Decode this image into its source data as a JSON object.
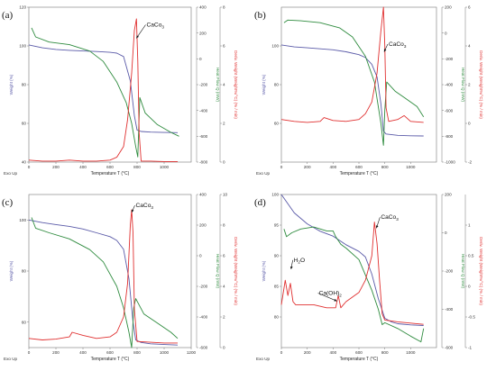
{
  "colors": {
    "weight": "#5a5aa8",
    "heatflow": "#2e8b3e",
    "deriv": "#e03030",
    "frame": "#777777"
  },
  "chart_data": [
    {
      "type": "line",
      "panel_label": "(a)",
      "xlabel": "Temperature T (°C)",
      "xlim": [
        0,
        1200
      ],
      "xticks": [
        0,
        200,
        400,
        600,
        800,
        1000
      ],
      "left_axis": {
        "label": "Weight (%)",
        "lim": [
          40,
          120
        ],
        "ticks": [
          40,
          60,
          80,
          100,
          120
        ]
      },
      "right1_axis": {
        "label": "Heat Flow Q (mW)",
        "lim": [
          -800,
          400
        ],
        "ticks": [
          -800,
          -600,
          -400,
          -200,
          0,
          200,
          400
        ]
      },
      "right2_axis": {
        "label": "Deriv. Weight (Weight%/°C) (% / min)",
        "lim": [
          0,
          8
        ],
        "ticks": [
          0,
          2,
          4,
          6,
          8
        ]
      },
      "exo_label": "Exo Up",
      "annotations": [
        {
          "text": "CaCo",
          "sub": "3",
          "x": 870,
          "y_left": 110,
          "arrow_to": [
            795,
            104
          ]
        }
      ],
      "series": [
        {
          "name": "Weight",
          "axis": "left",
          "x": [
            0,
            100,
            200,
            300,
            400,
            500,
            600,
            650,
            700,
            750,
            780,
            800,
            830,
            900,
            1000,
            1100
          ],
          "y": [
            100.5,
            99,
            98.2,
            97.7,
            97.4,
            97.1,
            96.7,
            96.3,
            94.5,
            82,
            64,
            56.5,
            55.8,
            55.5,
            55.3,
            55.2
          ]
        },
        {
          "name": "Heat Flow",
          "axis": "right1",
          "x": [
            20,
            50,
            150,
            300,
            450,
            550,
            650,
            720,
            760,
            790,
            805,
            820,
            860,
            950,
            1050,
            1110
          ],
          "y": [
            240,
            170,
            130,
            110,
            60,
            -20,
            -180,
            -340,
            -500,
            -680,
            -760,
            -300,
            -420,
            -510,
            -570,
            -600
          ]
        },
        {
          "name": "Deriv. Weight",
          "axis": "right2",
          "x": [
            0,
            100,
            200,
            300,
            400,
            500,
            600,
            650,
            700,
            730,
            760,
            780,
            795,
            805,
            815,
            830,
            900,
            1000,
            1100
          ],
          "y": [
            0.1,
            0.05,
            0.05,
            0.1,
            0.05,
            0.05,
            0.1,
            0.25,
            0.8,
            2.2,
            4.6,
            6.8,
            7.4,
            5.2,
            1.5,
            0.05,
            0.05,
            0.03,
            0.03
          ]
        }
      ]
    },
    {
      "type": "line",
      "panel_label": "(b)",
      "xlabel": "Temperature T (°C)",
      "xlim": [
        0,
        1200
      ],
      "xticks": [
        0,
        200,
        400,
        600,
        800,
        1000
      ],
      "left_axis": {
        "label": "Weight (%)",
        "lim": [
          40,
          120
        ],
        "ticks": [
          60,
          80,
          100
        ]
      },
      "right1_axis": {
        "label": "Heat Flow Q (mW)",
        "lim": [
          -1000,
          200
        ],
        "ticks": [
          -1000,
          -800,
          -600,
          -400,
          -200,
          0,
          200
        ]
      },
      "right2_axis": {
        "label": "Deriv. Weight (Weight%/°C) (% / min)",
        "lim": [
          -2,
          6
        ],
        "ticks": [
          -2,
          0,
          2,
          4,
          6
        ]
      },
      "exo_label": "Exo Up",
      "annotations": [
        {
          "text": "CaCo",
          "sub": "3",
          "x": 830,
          "y_left": 100,
          "arrow_to": [
            795,
            97
          ]
        }
      ],
      "series": [
        {
          "name": "Weight",
          "axis": "left",
          "x": [
            0,
            100,
            200,
            300,
            400,
            500,
            600,
            650,
            700,
            740,
            770,
            790,
            810,
            900,
            1000,
            1100
          ],
          "y": [
            100.5,
            99.5,
            99,
            98.5,
            98,
            97,
            95.5,
            94,
            90.5,
            84,
            70,
            56,
            54.5,
            53.8,
            53.6,
            53.5
          ]
        },
        {
          "name": "Heat Flow",
          "axis": "right1",
          "x": [
            20,
            50,
            150,
            300,
            450,
            550,
            650,
            720,
            770,
            790,
            800,
            815,
            880,
            950,
            1050,
            1100
          ],
          "y": [
            80,
            100,
            95,
            80,
            40,
            -30,
            -180,
            -380,
            -700,
            -870,
            -600,
            -380,
            -450,
            -500,
            -570,
            -650
          ]
        },
        {
          "name": "Deriv. Weight",
          "axis": "right2",
          "x": [
            0,
            100,
            200,
            300,
            330,
            400,
            500,
            600,
            650,
            700,
            740,
            770,
            790,
            800,
            810,
            830,
            900,
            950,
            1000,
            1100
          ],
          "y": [
            0.2,
            0.1,
            0.05,
            0.1,
            0.3,
            0.15,
            0.1,
            0.2,
            0.5,
            1.1,
            2.6,
            4.8,
            6,
            4,
            0.8,
            0.1,
            0.2,
            0.4,
            0.1,
            0.05
          ]
        }
      ]
    },
    {
      "type": "line",
      "panel_label": "(c)",
      "xlabel": "Temperature T (°C)",
      "xlim": [
        0,
        1200
      ],
      "xticks": [
        0,
        200,
        400,
        600,
        800,
        1000,
        1200
      ],
      "left_axis": {
        "label": "Weight (%)",
        "lim": [
          50,
          110
        ],
        "ticks": [
          60,
          80,
          100
        ]
      },
      "right1_axis": {
        "label": "Heat Flow Q (mW)",
        "lim": [
          -600,
          400
        ],
        "ticks": [
          -600,
          -400,
          -200,
          0,
          200,
          400
        ]
      },
      "right2_axis": {
        "label": "Deriv. Weight (Weight%/°C) (% / min)",
        "lim": [
          0,
          10
        ],
        "ticks": [
          0,
          2,
          4,
          6,
          8,
          10
        ]
      },
      "exo_label": "Exo Up",
      "annotations": [
        {
          "text": "CaCo",
          "sub": "3",
          "x": 790,
          "y_left": 105,
          "arrow_to": [
            760,
            103
          ]
        }
      ],
      "series": [
        {
          "name": "Weight",
          "axis": "left",
          "x": [
            0,
            100,
            200,
            300,
            400,
            500,
            600,
            650,
            700,
            740,
            770,
            790,
            830,
            900,
            1000,
            1100
          ],
          "y": [
            100,
            99,
            98.2,
            97.5,
            96.5,
            95,
            93.5,
            92,
            88.5,
            77,
            60,
            53,
            52,
            51.5,
            51.2,
            51
          ]
        },
        {
          "name": "Heat Flow",
          "axis": "right1",
          "x": [
            20,
            50,
            150,
            300,
            450,
            550,
            650,
            700,
            740,
            760,
            775,
            790,
            850,
            950,
            1050,
            1100
          ],
          "y": [
            250,
            180,
            150,
            110,
            40,
            -40,
            -200,
            -340,
            -500,
            -600,
            -340,
            -280,
            -380,
            -440,
            -500,
            -540
          ]
        },
        {
          "name": "Deriv. Weight",
          "axis": "right2",
          "x": [
            0,
            100,
            200,
            300,
            320,
            400,
            500,
            600,
            650,
            700,
            730,
            750,
            760,
            770,
            780,
            800,
            900,
            1000,
            1100
          ],
          "y": [
            0.6,
            0.5,
            0.55,
            0.7,
            1,
            0.8,
            0.6,
            0.7,
            1,
            2,
            4.2,
            8,
            9,
            7.5,
            2.5,
            0.4,
            0.35,
            0.3,
            0.3
          ]
        }
      ]
    },
    {
      "type": "line",
      "panel_label": "(d)",
      "xlabel": "Temperature T (°C)",
      "xlim": [
        0,
        1200
      ],
      "xticks": [
        0,
        200,
        400,
        600,
        800,
        1000
      ],
      "left_axis": {
        "label": "Weight (%)",
        "lim": [
          75,
          100
        ],
        "ticks": [
          80,
          85,
          90,
          95,
          100
        ]
      },
      "right1_axis": {
        "label": "Heat Flow Q (mW)",
        "lim": [
          -600,
          200
        ],
        "ticks": [
          -600,
          -400,
          -200,
          0,
          200
        ]
      },
      "right2_axis": {
        "label": "Deriv. Weight (Weight%/°C) (% / min)",
        "lim": [
          -1,
          1.5
        ],
        "ticks": [
          -1,
          -0.5,
          0,
          0.5,
          1
        ]
      },
      "exo_label": "Exo Up",
      "annotations": [
        {
          "text": "CaCo",
          "sub": "3",
          "x": 770,
          "y_left": 96,
          "arrow_to": [
            735,
            94.5
          ]
        },
        {
          "text": "H",
          "sub": "2",
          "tail": "O",
          "x": 95,
          "y_left": 89,
          "arrow_to": [
            75,
            87.8
          ]
        },
        {
          "text": "Ca(OH)",
          "sub": "2",
          "x": 290,
          "y_left": 83.6,
          "arrow_to": [
            430,
            82.6
          ]
        }
      ],
      "series": [
        {
          "name": "Weight",
          "axis": "left",
          "x": [
            0,
            50,
            100,
            200,
            300,
            400,
            450,
            500,
            600,
            650,
            700,
            750,
            800,
            850,
            900,
            1000,
            1100
          ],
          "y": [
            100,
            98.5,
            97,
            95.2,
            94,
            93.2,
            92.5,
            91.8,
            90.7,
            89.8,
            87,
            83,
            79.8,
            79.2,
            78.9,
            78.7,
            78.6
          ]
        },
        {
          "name": "Heat Flow",
          "axis": "right1",
          "x": [
            20,
            40,
            80,
            150,
            250,
            350,
            400,
            420,
            460,
            500,
            600,
            700,
            750,
            780,
            800,
            900,
            1000,
            1080,
            1100
          ],
          "y": [
            20,
            -20,
            0,
            20,
            30,
            10,
            10,
            -20,
            -60,
            -80,
            -140,
            -300,
            -400,
            -480,
            -470,
            -500,
            -540,
            -570,
            -500
          ]
        },
        {
          "name": "Deriv. Weight",
          "axis": "right2",
          "x": [
            0,
            30,
            50,
            70,
            90,
            110,
            150,
            250,
            350,
            420,
            440,
            460,
            500,
            600,
            650,
            700,
            720,
            740,
            760,
            780,
            800,
            900,
            1000,
            1100
          ],
          "y": [
            -0.3,
            0.1,
            -0.15,
            0.05,
            -0.25,
            -0.3,
            -0.3,
            -0.3,
            -0.35,
            -0.35,
            -0.15,
            -0.35,
            -0.25,
            -0.1,
            0.1,
            0.5,
            1.05,
            0.7,
            0.1,
            -0.45,
            -0.55,
            -0.58,
            -0.6,
            -0.62
          ]
        }
      ]
    }
  ]
}
